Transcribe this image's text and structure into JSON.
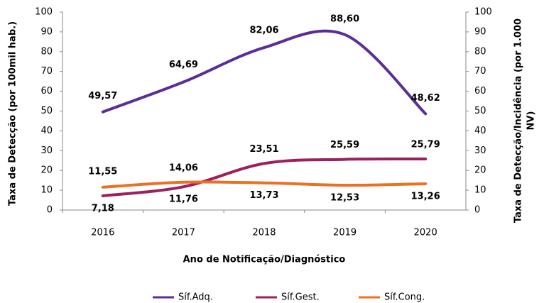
{
  "chart_data": {
    "type": "line",
    "categories": [
      "2016",
      "2017",
      "2018",
      "2019",
      "2020"
    ],
    "series": [
      {
        "name": "Síf.Adq.",
        "color": "#5b2d96",
        "values": [
          49.57,
          64.69,
          82.06,
          88.6,
          48.62
        ],
        "value_labels": [
          "49,57",
          "64,69",
          "82,06",
          "88,60",
          "48,62"
        ]
      },
      {
        "name": "Síf.Gest.",
        "color": "#9c1f5f",
        "axis": "y2",
        "values": [
          7.18,
          11.76,
          23.51,
          25.59,
          25.79
        ],
        "value_labels": [
          "7,18",
          "11,76",
          "23,51",
          "25,59",
          "25,79"
        ]
      },
      {
        "name": "Síf.Cong.",
        "color": "#ec7021",
        "axis": "y2",
        "values": [
          11.55,
          14.06,
          13.73,
          12.53,
          13.26
        ],
        "value_labels": [
          "11,55",
          "14,06",
          "13,73",
          "12,53",
          "13,26"
        ]
      }
    ],
    "ylabel": "Taxa de Detecção  (por 100mil hab.)",
    "y2label": [
      "Taxa de Detecção/Incidência  (por 1.000",
      "NV)"
    ],
    "xlabel": "Ano de Notificação/Diagnóstico",
    "ylim": [
      0,
      100
    ],
    "yticks": [
      0,
      10,
      20,
      30,
      40,
      50,
      60,
      70,
      80,
      90,
      100
    ],
    "y2lim": [
      0,
      100
    ],
    "y2ticks": [
      0,
      10,
      20,
      30,
      40,
      50,
      60,
      70,
      80,
      90,
      100
    ],
    "legend": "bottom",
    "grid": false
  }
}
